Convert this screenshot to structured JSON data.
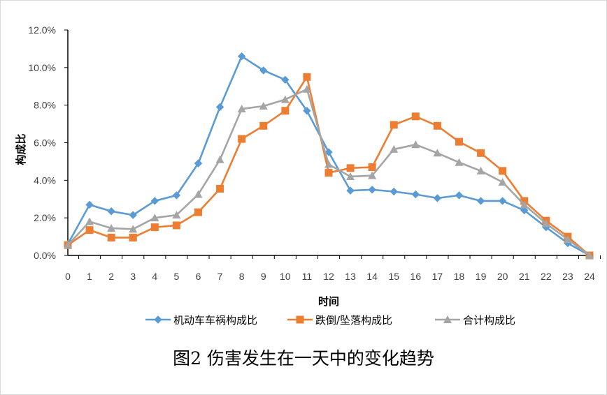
{
  "chart_data": {
    "type": "line",
    "title": "",
    "xlabel": "时间",
    "ylabel": "构成比",
    "x": [
      0,
      1,
      2,
      3,
      4,
      5,
      6,
      7,
      8,
      9,
      10,
      11,
      12,
      13,
      14,
      15,
      16,
      17,
      18,
      19,
      20,
      21,
      22,
      23,
      24
    ],
    "xticks": [
      "0",
      "1",
      "2",
      "3",
      "4",
      "5",
      "6",
      "7",
      "8",
      "9",
      "10",
      "11",
      "12",
      "13",
      "14",
      "15",
      "16",
      "17",
      "18",
      "19",
      "20",
      "21",
      "22",
      "23",
      "24"
    ],
    "ylim": [
      0,
      12
    ],
    "yticks": [
      "0.0%",
      "2.0%",
      "4.0%",
      "6.0%",
      "8.0%",
      "10.0%",
      "12.0%"
    ],
    "grid": false,
    "legend_position": "bottom",
    "series": [
      {
        "name": "机动车车祸构成比",
        "color": "#5b9bd5",
        "marker": "diamond",
        "values": [
          0.6,
          2.7,
          2.35,
          2.15,
          2.9,
          3.2,
          4.9,
          7.9,
          10.6,
          9.85,
          9.35,
          7.7,
          5.5,
          3.45,
          3.5,
          3.4,
          3.25,
          3.05,
          3.2,
          2.9,
          2.9,
          2.4,
          1.5,
          0.65,
          0.0
        ]
      },
      {
        "name": "跌倒/坠落构成比",
        "color": "#ed7d31",
        "marker": "square",
        "values": [
          0.55,
          1.35,
          0.95,
          0.95,
          1.5,
          1.6,
          2.3,
          3.55,
          6.2,
          6.9,
          7.7,
          9.5,
          4.4,
          4.65,
          4.7,
          6.95,
          7.4,
          6.9,
          6.05,
          5.45,
          4.5,
          2.9,
          1.85,
          1.0,
          0.0
        ]
      },
      {
        "name": "合计构成比",
        "color": "#a5a5a5",
        "marker": "triangle",
        "values": [
          0.55,
          1.8,
          1.45,
          1.4,
          2.0,
          2.15,
          3.25,
          5.1,
          7.8,
          7.95,
          8.3,
          8.85,
          4.85,
          4.2,
          4.25,
          5.65,
          5.9,
          5.45,
          4.95,
          4.5,
          3.9,
          2.7,
          1.7,
          0.85,
          0.0
        ]
      }
    ]
  },
  "caption": "图2 伤害发生在一天中的变化趋势"
}
